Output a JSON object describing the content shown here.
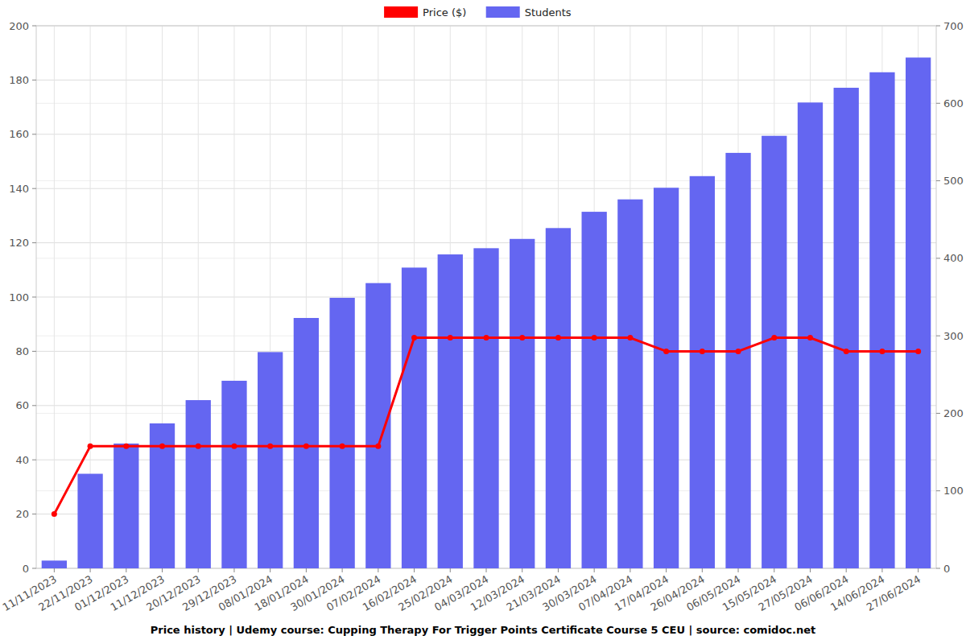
{
  "chart_data": {
    "type": "bar",
    "title": "Price history | Udemy course: Cupping Therapy For Trigger Points Certificate Course 5 CEU | source: comidoc.net",
    "categories": [
      "11/11/2023",
      "22/11/2023",
      "01/12/2023",
      "11/12/2023",
      "20/12/2023",
      "29/12/2023",
      "08/01/2024",
      "18/01/2024",
      "30/01/2024",
      "07/02/2024",
      "16/02/2024",
      "25/02/2024",
      "04/03/2024",
      "12/03/2024",
      "21/03/2024",
      "30/03/2024",
      "07/04/2024",
      "17/04/2024",
      "26/04/2024",
      "06/05/2024",
      "15/05/2024",
      "27/05/2024",
      "06/06/2024",
      "14/06/2024",
      "27/06/2024"
    ],
    "series": [
      {
        "name": "Price ($)",
        "type": "line",
        "color": "#ff0000",
        "marker": "circle",
        "axis": "y",
        "values": [
          20,
          45,
          45,
          45,
          45,
          45,
          45,
          45,
          45,
          45,
          85,
          85,
          85,
          85,
          85,
          85,
          85,
          80,
          80,
          80,
          85,
          85,
          80,
          80,
          80
        ]
      },
      {
        "name": "Students",
        "type": "bar",
        "color": "#6466f1",
        "axis": "y2",
        "values": [
          10,
          122,
          161,
          187,
          217,
          242,
          279,
          323,
          349,
          368,
          388,
          405,
          413,
          425,
          439,
          460,
          476,
          491,
          506,
          536,
          558,
          601,
          620,
          640,
          659
        ]
      }
    ],
    "ylim": [
      0,
      200
    ],
    "yticks": [
      0,
      20,
      40,
      60,
      80,
      100,
      120,
      140,
      160,
      180,
      200
    ],
    "y2lim": [
      0,
      700
    ],
    "y2ticks": [
      0,
      100,
      200,
      300,
      400,
      500,
      600,
      700
    ],
    "grid": true,
    "legend": "top"
  }
}
